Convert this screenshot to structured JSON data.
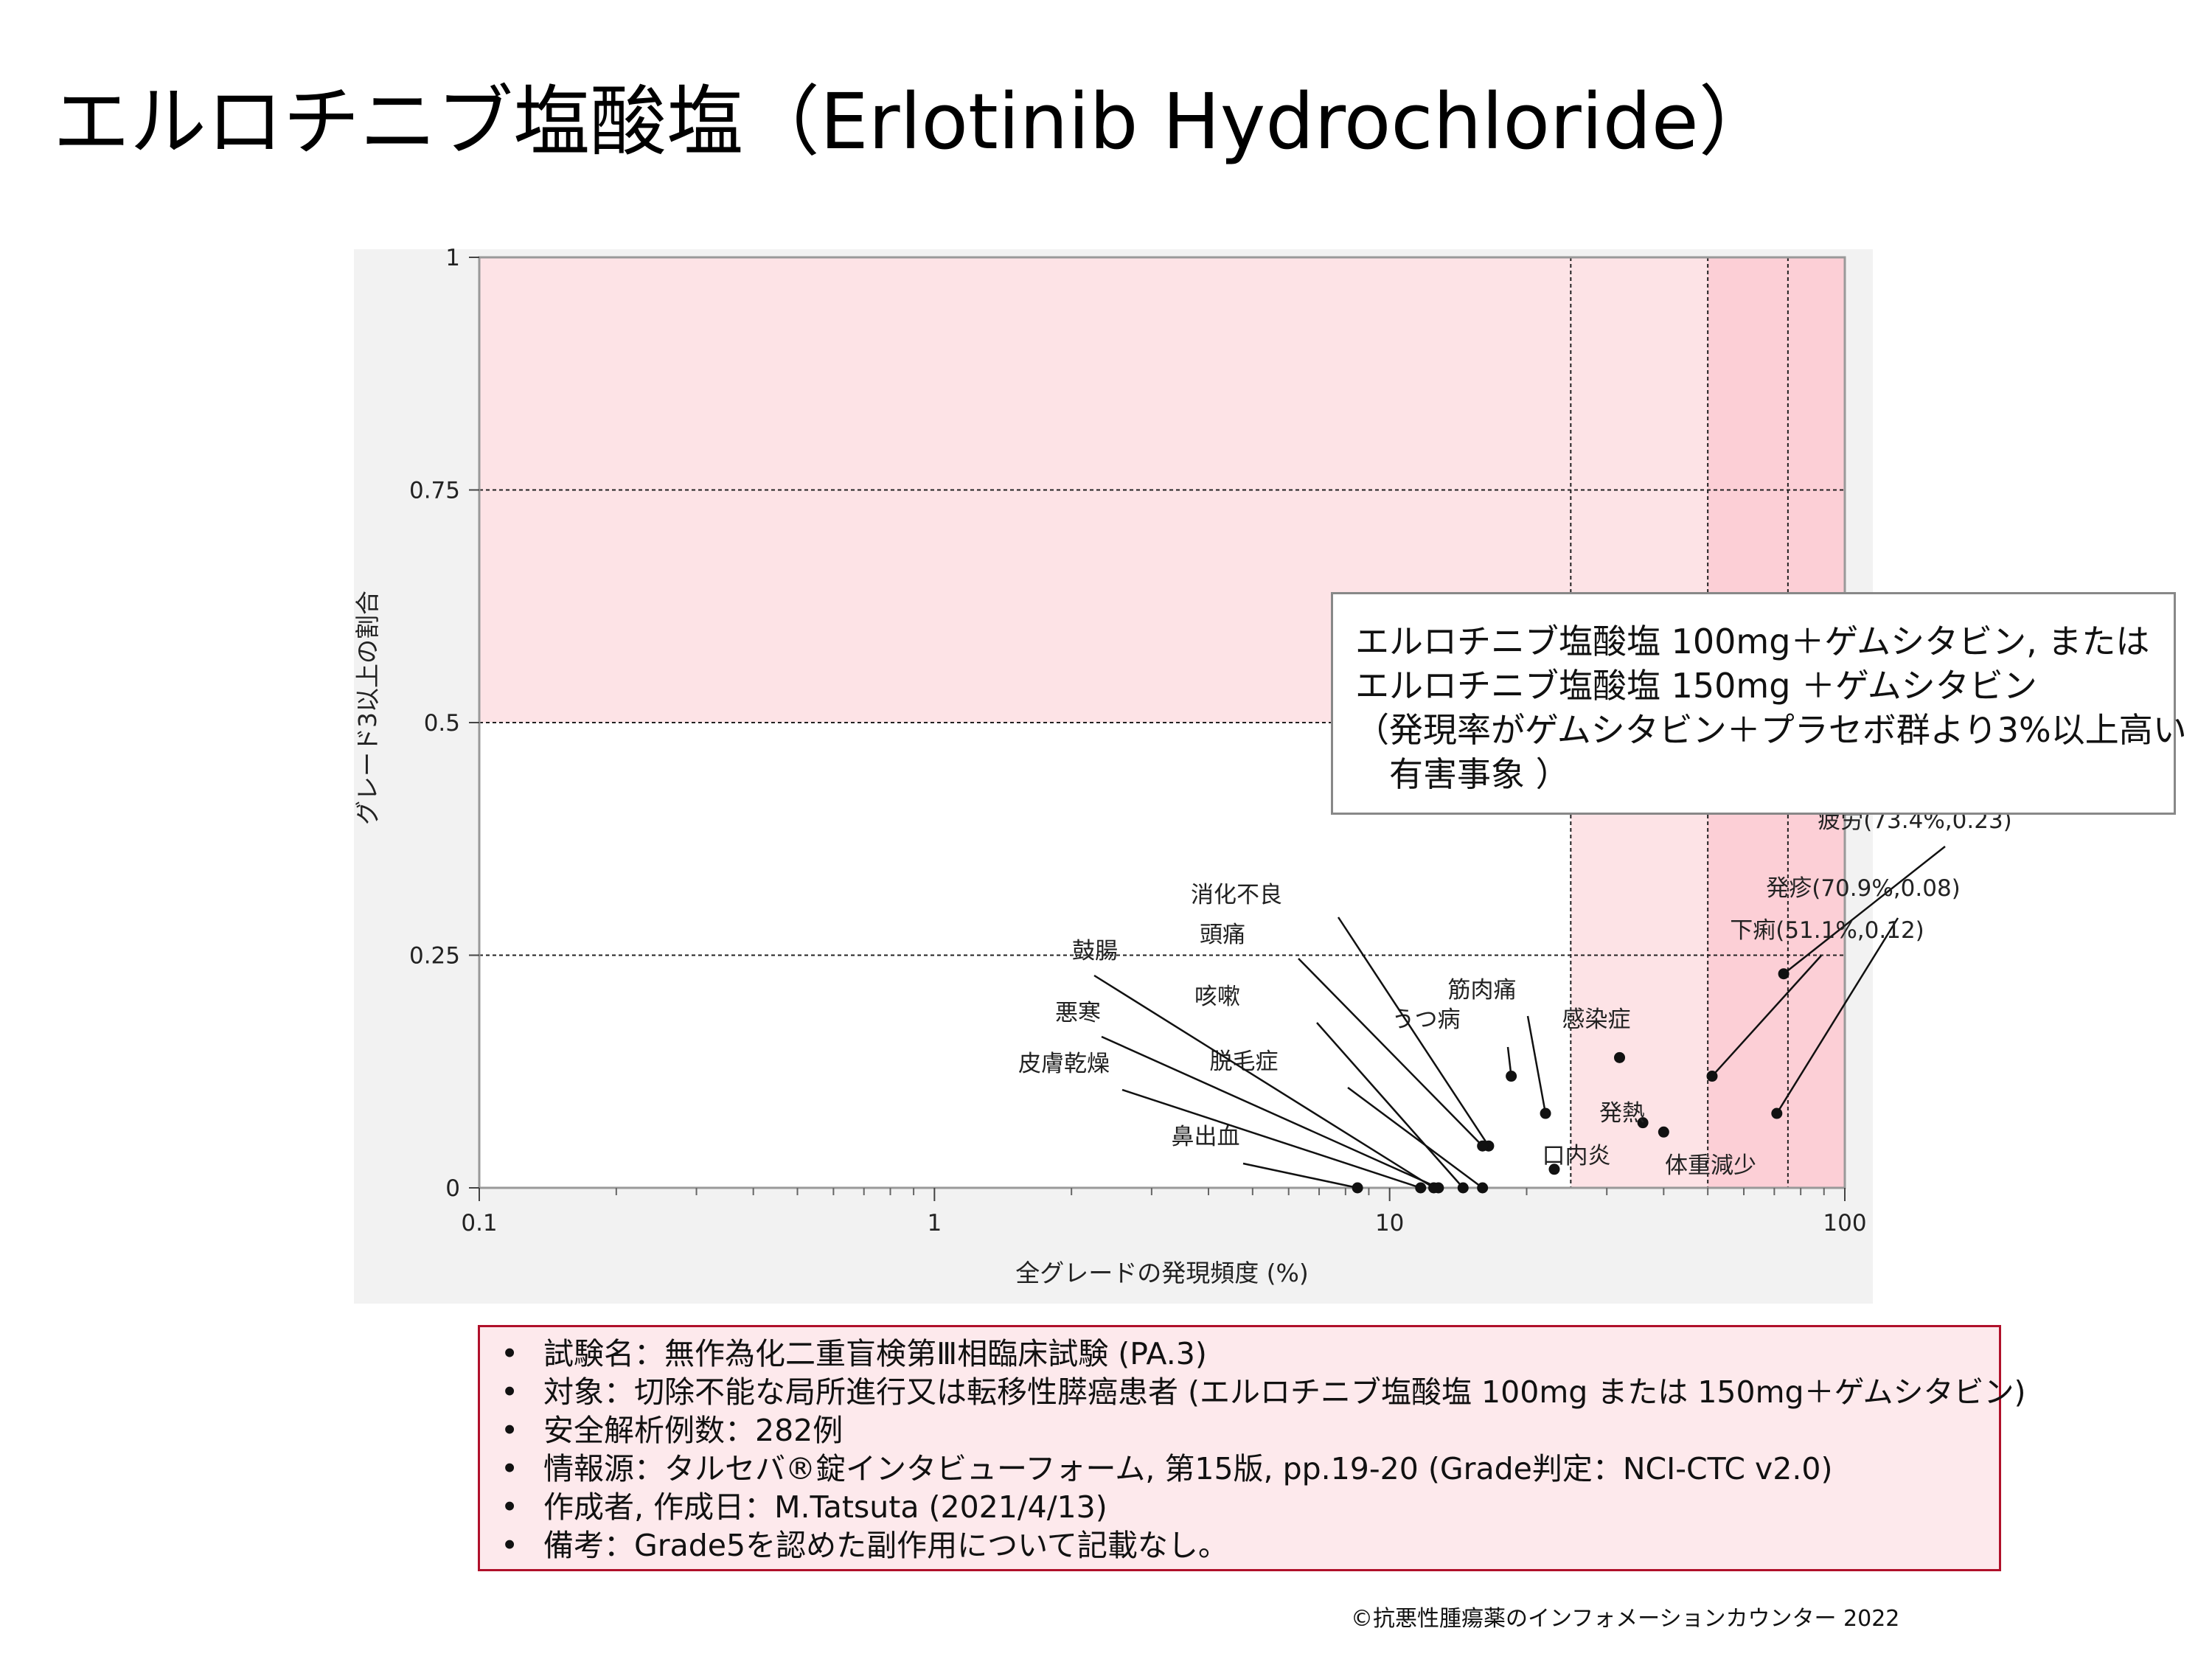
{
  "title": "エルロチニブ塩酸塩（Erlotinib Hydrochloride）",
  "annotation_box": [
    "エルロチニブ塩酸塩 100mg＋ゲムシタビン, または",
    "エルロチニブ塩酸塩 150mg ＋ゲムシタビン",
    "（発現率がゲムシタビン＋プラセボ群より3%以上高い",
    "　有害事象 ）"
  ],
  "info": [
    "試験名：無作為化二重盲検第Ⅲ相臨床試験 (PA.3)",
    "対象：切除不能な局所進行又は転移性膵癌患者 (エルロチニブ塩酸塩 100mg または 150mg＋ゲムシタビン)",
    "安全解析例数：282例",
    "情報源：タルセバ®錠インタビューフォーム, 第15版, pp.19-20 (Grade判定：NCI-CTC v2.0)",
    "作成者, 作成日：M.Tatsuta (2021/4/13)",
    "備考：Grade5を認めた副作用について記載なし。"
  ],
  "copyright": "©抗悪性腫瘍薬のインフォメーションカウンター 2022",
  "colors": {
    "zone_light": "#fde3e6",
    "zone_dark": "#fccfd6",
    "plot_bg": "#ffffff",
    "chart_bg": "#f2f2f2",
    "info_border": "#b0102a",
    "info_bg": "#fde9ec"
  },
  "chart_data": {
    "type": "scatter",
    "xlabel": "全グレードの発現頻度 (%)",
    "ylabel": "グレード3以上の割合",
    "xscale": "log",
    "xlim": [
      0.1,
      100
    ],
    "ylim": [
      0,
      1
    ],
    "xticks": [
      "0.1",
      "1",
      "10",
      "100"
    ],
    "yticks": [
      "0",
      "0.25",
      "0.5",
      "0.75",
      "1"
    ],
    "reference_lines": {
      "x": [
        25,
        50,
        75
      ],
      "y": [
        0.25,
        0.5,
        0.75
      ]
    },
    "shaded_regions": [
      {
        "note": "upper",
        "x": [
          0.1,
          100
        ],
        "y": [
          0.5,
          1
        ]
      },
      {
        "note": "right",
        "x": [
          25,
          100
        ],
        "y": [
          0,
          0.5
        ]
      },
      {
        "note": "far-right",
        "x": [
          50,
          100
        ],
        "y": [
          0,
          1
        ]
      }
    ],
    "points": [
      {
        "label": "疲労(73.4%,0.23)",
        "x": 73.4,
        "y": 0.23
      },
      {
        "label": "発疹(70.9%,0.08)",
        "x": 70.9,
        "y": 0.08
      },
      {
        "label": "下痢(51.1%,0.12)",
        "x": 51.1,
        "y": 0.12
      },
      {
        "label": "感染症",
        "x": 32,
        "y": 0.14
      },
      {
        "label": "発熱",
        "x": 36,
        "y": 0.07
      },
      {
        "label": "体重減少",
        "x": 40,
        "y": 0.06
      },
      {
        "label": "口内炎",
        "x": 23,
        "y": 0.02
      },
      {
        "label": "筋肉痛",
        "x": 22,
        "y": 0.08
      },
      {
        "label": "うつ病",
        "x": 18.5,
        "y": 0.12
      },
      {
        "label": "消化不良",
        "x": 16.5,
        "y": 0.045
      },
      {
        "label": "頭痛",
        "x": 16,
        "y": 0.045
      },
      {
        "label": "咳嗽",
        "x": 14.5,
        "y": 0.0
      },
      {
        "label": "脱毛症",
        "x": 16,
        "y": 0.0
      },
      {
        "label": "鼓腸",
        "x": 12.5,
        "y": 0.0
      },
      {
        "label": "悪寒",
        "x": 12.8,
        "y": 0.0
      },
      {
        "label": "皮膚乾燥",
        "x": 11.7,
        "y": 0.0
      },
      {
        "label": "鼻出血",
        "x": 8.5,
        "y": 0.0
      }
    ]
  }
}
